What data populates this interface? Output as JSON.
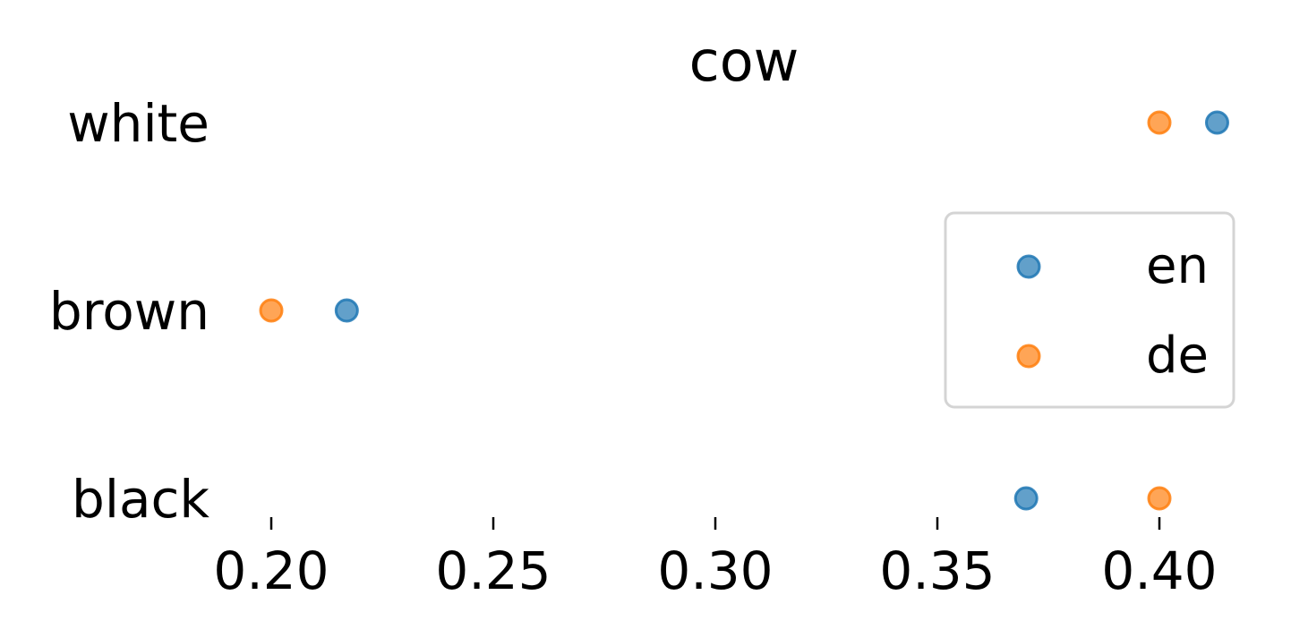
{
  "chart_data": {
    "type": "scatter",
    "title": "cow",
    "xlabel": "",
    "ylabel": "",
    "xlim": [
      0.19,
      0.415
    ],
    "x_ticks": [
      0.2,
      0.25,
      0.3,
      0.35,
      0.4
    ],
    "x_tick_labels": [
      "0.20",
      "0.25",
      "0.30",
      "0.35",
      "0.40"
    ],
    "categories": [
      "white",
      "brown",
      "black"
    ],
    "series": [
      {
        "name": "en",
        "color": "#1f77b4",
        "values": [
          0.413,
          0.217,
          0.37
        ]
      },
      {
        "name": "de",
        "color": "#ff7f0e",
        "values": [
          0.4,
          0.2,
          0.4
        ]
      }
    ],
    "legend": {
      "placement": "right"
    },
    "grid": false
  }
}
